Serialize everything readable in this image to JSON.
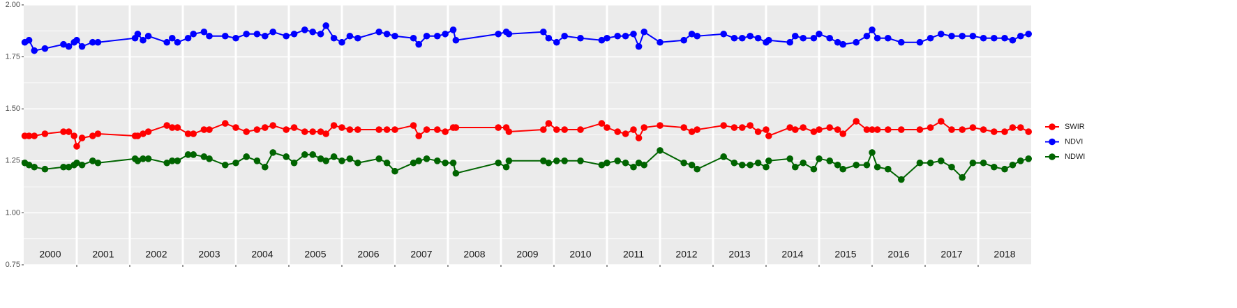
{
  "chart_data": {
    "type": "line",
    "x": [
      2000.02,
      2000.1,
      2000.2,
      2000.4,
      2000.75,
      2000.85,
      2000.95,
      2001.0,
      2001.1,
      2001.3,
      2001.4,
      2002.1,
      2002.15,
      2002.25,
      2002.35,
      2002.7,
      2002.8,
      2002.9,
      2003.1,
      2003.2,
      2003.4,
      2003.5,
      2003.8,
      2004.0,
      2004.2,
      2004.4,
      2004.55,
      2004.7,
      2004.95,
      2005.1,
      2005.3,
      2005.45,
      2005.6,
      2005.7,
      2005.85,
      2006.0,
      2006.15,
      2006.3,
      2006.7,
      2006.85,
      2007.0,
      2007.35,
      2007.45,
      2007.6,
      2007.8,
      2007.95,
      2008.1,
      2008.15,
      2008.95,
      2009.1,
      2009.15,
      2009.8,
      2009.9,
      2010.05,
      2010.2,
      2010.5,
      2010.9,
      2011.0,
      2011.2,
      2011.35,
      2011.5,
      2011.6,
      2011.7,
      2012.0,
      2012.45,
      2012.6,
      2012.7,
      2013.2,
      2013.4,
      2013.55,
      2013.7,
      2013.85,
      2014.0,
      2014.05,
      2014.45,
      2014.55,
      2014.7,
      2014.9,
      2015.0,
      2015.2,
      2015.35,
      2015.45,
      2015.7,
      2015.9,
      2016.0,
      2016.1,
      2016.3,
      2016.55,
      2016.9,
      2017.1,
      2017.3,
      2017.5,
      2017.7,
      2017.9,
      2018.1,
      2018.3,
      2018.5,
      2018.65,
      2018.8,
      2018.95
    ],
    "series": [
      {
        "name": "SWIR",
        "color": "#ff0000",
        "values": [
          1.37,
          1.37,
          1.37,
          1.38,
          1.39,
          1.39,
          1.37,
          1.32,
          1.36,
          1.37,
          1.38,
          1.37,
          1.37,
          1.38,
          1.39,
          1.42,
          1.41,
          1.41,
          1.38,
          1.38,
          1.4,
          1.4,
          1.43,
          1.41,
          1.39,
          1.4,
          1.41,
          1.42,
          1.4,
          1.41,
          1.39,
          1.39,
          1.39,
          1.38,
          1.42,
          1.41,
          1.4,
          1.4,
          1.4,
          1.4,
          1.4,
          1.42,
          1.37,
          1.4,
          1.4,
          1.39,
          1.41,
          1.41,
          1.41,
          1.41,
          1.39,
          1.4,
          1.43,
          1.4,
          1.4,
          1.4,
          1.43,
          1.41,
          1.39,
          1.38,
          1.4,
          1.36,
          1.41,
          1.42,
          1.41,
          1.39,
          1.4,
          1.42,
          1.41,
          1.41,
          1.42,
          1.39,
          1.4,
          1.37,
          1.41,
          1.4,
          1.41,
          1.39,
          1.4,
          1.41,
          1.4,
          1.38,
          1.44,
          1.4,
          1.4,
          1.4,
          1.4,
          1.4,
          1.4,
          1.41,
          1.44,
          1.4,
          1.4,
          1.41,
          1.4,
          1.39,
          1.39,
          1.41,
          1.41,
          1.39
        ]
      },
      {
        "name": "NDVI",
        "color": "#0000ff",
        "values": [
          1.82,
          1.83,
          1.78,
          1.79,
          1.81,
          1.8,
          1.82,
          1.83,
          1.8,
          1.82,
          1.82,
          1.84,
          1.86,
          1.83,
          1.85,
          1.82,
          1.84,
          1.82,
          1.84,
          1.86,
          1.87,
          1.85,
          1.85,
          1.84,
          1.86,
          1.86,
          1.85,
          1.87,
          1.85,
          1.86,
          1.88,
          1.87,
          1.86,
          1.9,
          1.84,
          1.82,
          1.85,
          1.84,
          1.87,
          1.86,
          1.85,
          1.84,
          1.81,
          1.85,
          1.85,
          1.86,
          1.88,
          1.83,
          1.86,
          1.87,
          1.86,
          1.87,
          1.84,
          1.82,
          1.85,
          1.84,
          1.83,
          1.84,
          1.85,
          1.85,
          1.86,
          1.8,
          1.87,
          1.82,
          1.83,
          1.86,
          1.85,
          1.86,
          1.84,
          1.84,
          1.85,
          1.84,
          1.82,
          1.83,
          1.82,
          1.85,
          1.84,
          1.84,
          1.86,
          1.84,
          1.82,
          1.81,
          1.82,
          1.85,
          1.88,
          1.84,
          1.84,
          1.82,
          1.82,
          1.84,
          1.86,
          1.85,
          1.85,
          1.85,
          1.84,
          1.84,
          1.84,
          1.83,
          1.85,
          1.86
        ]
      },
      {
        "name": "NDWI",
        "color": "#006400",
        "values": [
          1.24,
          1.23,
          1.22,
          1.21,
          1.22,
          1.22,
          1.23,
          1.24,
          1.23,
          1.25,
          1.24,
          1.26,
          1.25,
          1.26,
          1.26,
          1.24,
          1.25,
          1.25,
          1.28,
          1.28,
          1.27,
          1.26,
          1.23,
          1.24,
          1.27,
          1.25,
          1.22,
          1.29,
          1.27,
          1.24,
          1.28,
          1.28,
          1.26,
          1.25,
          1.27,
          1.25,
          1.26,
          1.24,
          1.26,
          1.24,
          1.2,
          1.24,
          1.25,
          1.26,
          1.25,
          1.24,
          1.24,
          1.19,
          1.24,
          1.22,
          1.25,
          1.25,
          1.24,
          1.25,
          1.25,
          1.25,
          1.23,
          1.24,
          1.25,
          1.24,
          1.22,
          1.24,
          1.23,
          1.3,
          1.24,
          1.23,
          1.21,
          1.27,
          1.24,
          1.23,
          1.23,
          1.24,
          1.22,
          1.25,
          1.26,
          1.22,
          1.24,
          1.21,
          1.26,
          1.25,
          1.23,
          1.21,
          1.23,
          1.23,
          1.29,
          1.22,
          1.21,
          1.16,
          1.24,
          1.24,
          1.25,
          1.22,
          1.17,
          1.24,
          1.24,
          1.22,
          1.21,
          1.23,
          1.25,
          1.26
        ]
      }
    ],
    "xlim": [
      2000,
      2019
    ],
    "xticks": [
      2001,
      2002,
      2003,
      2004,
      2005,
      2006,
      2007,
      2008,
      2009,
      2010,
      2011,
      2012,
      2013,
      2014,
      2015,
      2016,
      2017,
      2018
    ],
    "year_labels": [
      {
        "value": 2000.5,
        "label": "2000"
      },
      {
        "value": 2001.5,
        "label": "2001"
      },
      {
        "value": 2002.5,
        "label": "2002"
      },
      {
        "value": 2003.5,
        "label": "2003"
      },
      {
        "value": 2004.5,
        "label": "2004"
      },
      {
        "value": 2005.5,
        "label": "2005"
      },
      {
        "value": 2006.5,
        "label": "2006"
      },
      {
        "value": 2007.5,
        "label": "2007"
      },
      {
        "value": 2008.5,
        "label": "2008"
      },
      {
        "value": 2009.5,
        "label": "2009"
      },
      {
        "value": 2010.5,
        "label": "2010"
      },
      {
        "value": 2011.5,
        "label": "2011"
      },
      {
        "value": 2012.5,
        "label": "2012"
      },
      {
        "value": 2013.5,
        "label": "2013"
      },
      {
        "value": 2014.5,
        "label": "2014"
      },
      {
        "value": 2015.5,
        "label": "2015"
      },
      {
        "value": 2016.5,
        "label": "2016"
      },
      {
        "value": 2017.5,
        "label": "2017"
      },
      {
        "value": 2018.5,
        "label": "2018"
      }
    ],
    "ylim": [
      0.75,
      2.0
    ],
    "yticks": [
      0.75,
      {
        "value": 1.0,
        "label": "1.00"
      },
      1.25,
      {
        "value": 1.5,
        "label": "1.50"
      },
      1.75,
      {
        "value": 2.0,
        "label": "2.00"
      }
    ],
    "grid": true,
    "legend": "right"
  }
}
